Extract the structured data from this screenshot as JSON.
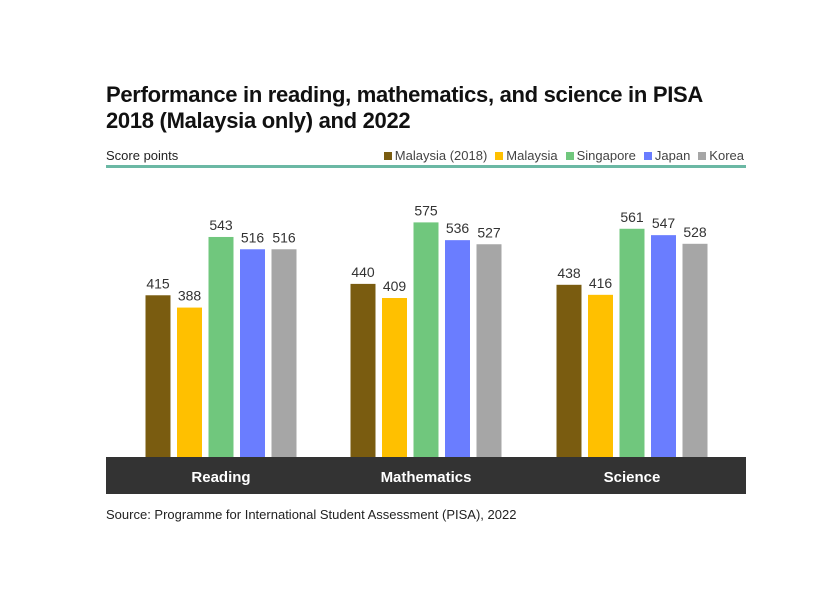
{
  "chart_data": {
    "type": "bar",
    "title": "Performance in reading, mathematics, and science in PISA 2018 (Malaysia only) and 2022",
    "ylabel": "Score points",
    "categories": [
      "Reading",
      "Mathematics",
      "Science"
    ],
    "series": [
      {
        "name": "Malaysia (2018)",
        "color": "#7a5c10",
        "values": [
          415,
          440,
          438
        ]
      },
      {
        "name": "Malaysia",
        "color": "#ffc000",
        "values": [
          388,
          409,
          416
        ]
      },
      {
        "name": "Singapore",
        "color": "#70c77d",
        "values": [
          543,
          575,
          561
        ]
      },
      {
        "name": "Japan",
        "color": "#6a7dff",
        "values": [
          516,
          536,
          547
        ]
      },
      {
        "name": "Korea",
        "color": "#a6a6a6",
        "values": [
          516,
          527,
          528
        ]
      }
    ],
    "ylim": [
      60,
      600
    ],
    "grid": false,
    "legend_position": "top-right",
    "source": "Source: Programme for International Student Assessment (PISA), 2022"
  }
}
